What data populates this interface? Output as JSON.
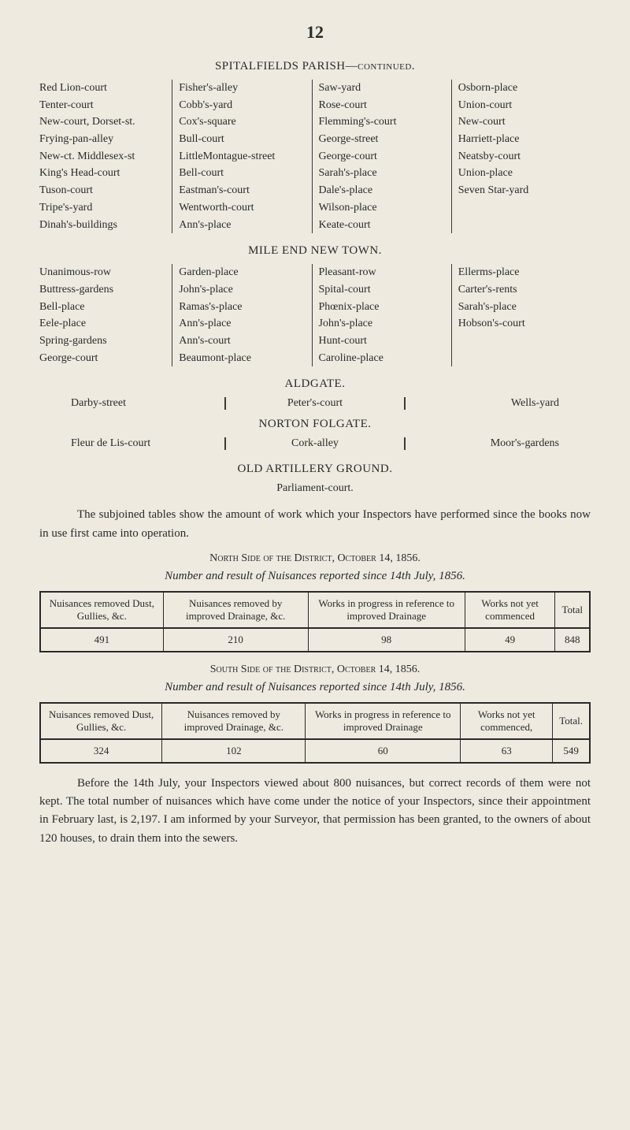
{
  "page_number": "12",
  "spitalfields": {
    "title_upper": "SPITALFIELDS PARISH",
    "title_suffix": "—continued.",
    "columns": [
      [
        "Red Lion-court",
        "Tenter-court",
        "New-court, Dorset-st.",
        "Frying-pan-alley",
        "New-ct. Middlesex-st",
        "King's Head-court",
        "Tuson-court",
        "Tripe's-yard",
        "Dinah's-buildings"
      ],
      [
        "Fisher's-alley",
        "Cobb's-yard",
        "Cox's-square",
        "Bull-court",
        "LittleMontague-street",
        "Bell-court",
        "Eastman's-court",
        "Wentworth-court",
        "Ann's-place"
      ],
      [
        "Saw-yard",
        "Rose-court",
        "Flemming's-court",
        "George-street",
        "George-court",
        "Sarah's-place",
        "Dale's-place",
        "Wilson-place",
        "Keate-court"
      ],
      [
        "Osborn-place",
        "Union-court",
        "New-court",
        "Harriett-place",
        "Neatsby-court",
        "Union-place",
        "Seven Star-yard"
      ]
    ]
  },
  "mile_end": {
    "title": "MILE END NEW TOWN.",
    "columns": [
      [
        "Unanimous-row",
        "Buttress-gardens",
        "Bell-place",
        "Eele-place",
        "Spring-gardens",
        "George-court"
      ],
      [
        "Garden-place",
        "John's-place",
        "Ramas's-place",
        "Ann's-place",
        "Ann's-court",
        "Beaumont-place"
      ],
      [
        "Pleasant-row",
        "Spital-court",
        "Phœnix-place",
        "John's-place",
        "Hunt-court",
        "Caroline-place"
      ],
      [
        "Ellerms-place",
        "Carter's-rents",
        "Sarah's-place",
        "Hobson's-court"
      ]
    ]
  },
  "aldgate": {
    "title": "ALDGATE.",
    "left": "Darby-street",
    "mid": "Peter's-court",
    "right": "Wells-yard"
  },
  "norton": {
    "title": "NORTON FOLGATE.",
    "left": "Fleur de Lis-court",
    "mid": "Cork-alley",
    "right": "Moor's-gardens"
  },
  "old_artillery": {
    "title": "OLD ARTILLERY GROUND.",
    "line": "Parliament-court."
  },
  "para1": "The subjoined tables show the amount of work which your Inspectors have performed since the books now in use first came into operation.",
  "north_title_sc": "North Side of the District, October 14, 1856.",
  "north_italic": "Number and result of Nuisances reported since 14th July, 1856.",
  "north_table": {
    "headers": [
      "Nuisances removed Dust, Gullies, &c.",
      "Nuisances removed by improved Drainage, &c.",
      "Works in progress in reference to improved Drainage",
      "Works not yet com­menced",
      "Total"
    ],
    "values": [
      "491",
      "210",
      "98",
      "49",
      "848"
    ]
  },
  "south_title_sc": "South Side of the District, October 14, 1856.",
  "south_italic": "Number and result of Nuisances reported since 14th July, 1856.",
  "south_table": {
    "headers": [
      "Nuisances removed Dust, Gullies, &c.",
      "Nuisances removed by improved Drainage, &c.",
      "Works in progress in reference to improved Drainage",
      "Works not yet com­menced,",
      "Total."
    ],
    "values": [
      "324",
      "102",
      "60",
      "63",
      "549"
    ]
  },
  "para2": "Before the 14th July, your Inspectors viewed about 800 nuisances, but correct records of them were not kept. The total number of nuisances which have come under the notice of your Inspectors, since their appointment in February last, is 2,197. I am informed by your Surveyor, that permission has been granted, to the owners of about 120 houses, to drain them into the sewers."
}
